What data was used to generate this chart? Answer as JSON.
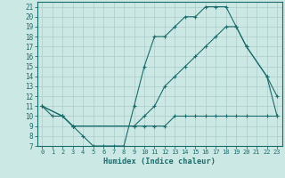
{
  "xlabel": "Humidex (Indice chaleur)",
  "bg_color": "#cce8e4",
  "line_color": "#1a6b6b",
  "grid_color": "#aaccca",
  "xlim": [
    -0.5,
    23.5
  ],
  "ylim": [
    7,
    21.5
  ],
  "xticks": [
    0,
    1,
    2,
    3,
    4,
    5,
    6,
    7,
    8,
    9,
    10,
    11,
    12,
    13,
    14,
    15,
    16,
    17,
    18,
    19,
    20,
    21,
    22,
    23
  ],
  "yticks": [
    7,
    8,
    9,
    10,
    11,
    12,
    13,
    14,
    15,
    16,
    17,
    18,
    19,
    20,
    21
  ],
  "line1_x": [
    0,
    1,
    2,
    3,
    4,
    5,
    6,
    7,
    8,
    9,
    10,
    11,
    12,
    13,
    14,
    15,
    16,
    17,
    18,
    19,
    20,
    22,
    23
  ],
  "line1_y": [
    11,
    10,
    10,
    9,
    8,
    7,
    7,
    7,
    7,
    11,
    15,
    18,
    18,
    19,
    20,
    20,
    21,
    21,
    21,
    19,
    17,
    14,
    12
  ],
  "line2_x": [
    0,
    2,
    3,
    9,
    10,
    11,
    12,
    13,
    14,
    15,
    16,
    17,
    18,
    19,
    20,
    22,
    23
  ],
  "line2_y": [
    11,
    10,
    9,
    9,
    10,
    11,
    13,
    14,
    15,
    16,
    17,
    18,
    19,
    19,
    17,
    14,
    10
  ],
  "line3_x": [
    0,
    2,
    3,
    9,
    10,
    11,
    12,
    13,
    14,
    15,
    16,
    17,
    18,
    19,
    20,
    22,
    23
  ],
  "line3_y": [
    11,
    10,
    9,
    9,
    9,
    9,
    9,
    10,
    10,
    10,
    10,
    10,
    10,
    10,
    10,
    10,
    10
  ]
}
